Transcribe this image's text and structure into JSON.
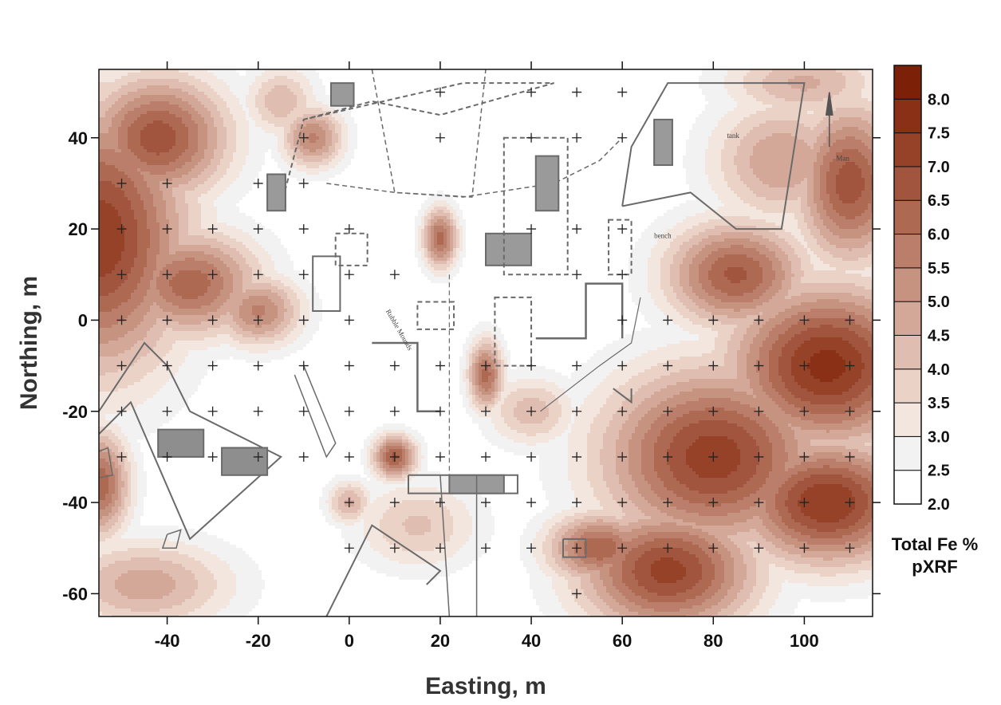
{
  "chart_data": {
    "type": "heatmap",
    "title": "",
    "xlabel": "Easting, m",
    "ylabel": "Northing, m",
    "xlim": [
      -55,
      115
    ],
    "ylim": [
      -65,
      55
    ],
    "x_ticks": [
      -40,
      -20,
      0,
      20,
      40,
      60,
      80,
      100
    ],
    "y_ticks": [
      40,
      20,
      0,
      -20,
      -40,
      -60
    ],
    "colorbar": {
      "title_lines": [
        "Total Fe %",
        "pXRF"
      ],
      "levels": [
        2.0,
        2.5,
        3.0,
        3.5,
        4.0,
        4.5,
        5.0,
        5.5,
        6.0,
        6.5,
        7.0,
        7.5,
        8.0,
        8.5
      ],
      "labels": [
        "2.0",
        "2.5",
        "3.0",
        "3.5",
        "4.0",
        "4.5",
        "5.0",
        "5.5",
        "6.0",
        "6.5",
        "7.0",
        "7.5",
        "8.0"
      ],
      "colors": [
        "#ffffff",
        "#f3f2f2",
        "#f3e6df",
        "#ead2c7",
        "#dfbdb0",
        "#d3a898",
        "#c79381",
        "#bb7e6a",
        "#ae6953",
        "#a2553e",
        "#964229",
        "#8a3016",
        "#7d2008"
      ]
    },
    "sample_points": [
      [
        20,
        50
      ],
      [
        40,
        50
      ],
      [
        50,
        50
      ],
      [
        60,
        50
      ],
      [
        -10,
        40
      ],
      [
        20,
        40
      ],
      [
        40,
        40
      ],
      [
        50,
        40
      ],
      [
        60,
        40
      ],
      [
        -50,
        30
      ],
      [
        -40,
        30
      ],
      [
        -20,
        30
      ],
      [
        -10,
        30
      ],
      [
        -50,
        20
      ],
      [
        -40,
        20
      ],
      [
        -30,
        20
      ],
      [
        -20,
        20
      ],
      [
        -10,
        20
      ],
      [
        0,
        20
      ],
      [
        40,
        20
      ],
      [
        50,
        20
      ],
      [
        60,
        20
      ],
      [
        -50,
        10
      ],
      [
        -40,
        10
      ],
      [
        -30,
        10
      ],
      [
        -20,
        10
      ],
      [
        -10,
        10
      ],
      [
        0,
        10
      ],
      [
        10,
        10
      ],
      [
        50,
        10
      ],
      [
        60,
        10
      ],
      [
        -50,
        0
      ],
      [
        -40,
        0
      ],
      [
        -30,
        0
      ],
      [
        -20,
        0
      ],
      [
        -10,
        0
      ],
      [
        0,
        0
      ],
      [
        60,
        0
      ],
      [
        70,
        0
      ],
      [
        80,
        0
      ],
      [
        90,
        0
      ],
      [
        100,
        0
      ],
      [
        110,
        0
      ],
      [
        -50,
        -10
      ],
      [
        -40,
        -10
      ],
      [
        -30,
        -10
      ],
      [
        -20,
        -10
      ],
      [
        -10,
        -10
      ],
      [
        0,
        -10
      ],
      [
        10,
        -10
      ],
      [
        20,
        -10
      ],
      [
        30,
        -10
      ],
      [
        40,
        -10
      ],
      [
        50,
        -10
      ],
      [
        60,
        -10
      ],
      [
        70,
        -10
      ],
      [
        80,
        -10
      ],
      [
        90,
        -10
      ],
      [
        100,
        -10
      ],
      [
        110,
        -10
      ],
      [
        -50,
        -20
      ],
      [
        -40,
        -20
      ],
      [
        -30,
        -20
      ],
      [
        -20,
        -20
      ],
      [
        -10,
        -20
      ],
      [
        0,
        -20
      ],
      [
        10,
        -20
      ],
      [
        20,
        -20
      ],
      [
        30,
        -20
      ],
      [
        40,
        -20
      ],
      [
        50,
        -20
      ],
      [
        60,
        -20
      ],
      [
        70,
        -20
      ],
      [
        80,
        -20
      ],
      [
        90,
        -20
      ],
      [
        100,
        -20
      ],
      [
        110,
        -20
      ],
      [
        -50,
        -30
      ],
      [
        -40,
        -30
      ],
      [
        -30,
        -30
      ],
      [
        -20,
        -30
      ],
      [
        -10,
        -30
      ],
      [
        0,
        -30
      ],
      [
        10,
        -30
      ],
      [
        20,
        -30
      ],
      [
        30,
        -30
      ],
      [
        40,
        -30
      ],
      [
        50,
        -30
      ],
      [
        60,
        -30
      ],
      [
        70,
        -30
      ],
      [
        80,
        -30
      ],
      [
        90,
        -30
      ],
      [
        100,
        -30
      ],
      [
        110,
        -30
      ],
      [
        0,
        -40
      ],
      [
        10,
        -40
      ],
      [
        20,
        -40
      ],
      [
        30,
        -40
      ],
      [
        40,
        -40
      ],
      [
        50,
        -40
      ],
      [
        60,
        -40
      ],
      [
        70,
        -40
      ],
      [
        80,
        -40
      ],
      [
        90,
        -40
      ],
      [
        100,
        -40
      ],
      [
        110,
        -40
      ],
      [
        0,
        -50
      ],
      [
        10,
        -50
      ],
      [
        20,
        -50
      ],
      [
        30,
        -50
      ],
      [
        40,
        -50
      ],
      [
        50,
        -50
      ],
      [
        60,
        -50
      ],
      [
        70,
        -50
      ],
      [
        80,
        -50
      ],
      [
        90,
        -50
      ],
      [
        100,
        -50
      ],
      [
        110,
        -50
      ],
      [
        50,
        -60
      ]
    ],
    "fe_sources": [
      [
        -55,
        18,
        7.4,
        20,
        30
      ],
      [
        -42,
        40,
        6.8,
        16,
        14
      ],
      [
        -35,
        8,
        6.3,
        16,
        12
      ],
      [
        -20,
        2,
        5.6,
        10,
        8
      ],
      [
        -8,
        40,
        5.6,
        7,
        7
      ],
      [
        20,
        18,
        6.2,
        4,
        7
      ],
      [
        30,
        -12,
        6.2,
        4,
        8
      ],
      [
        10,
        -30,
        6.6,
        5,
        5
      ],
      [
        0,
        -40,
        4.6,
        5,
        5
      ],
      [
        -55,
        -36,
        6.4,
        7,
        12
      ],
      [
        -45,
        -58,
        4.8,
        20,
        10
      ],
      [
        15,
        -45,
        4.1,
        14,
        10
      ],
      [
        105,
        -10,
        7.7,
        22,
        18
      ],
      [
        105,
        -40,
        7.5,
        20,
        14
      ],
      [
        80,
        -30,
        7.3,
        25,
        20
      ],
      [
        70,
        -55,
        7.2,
        20,
        14
      ],
      [
        110,
        30,
        6.8,
        12,
        18
      ],
      [
        95,
        35,
        5.0,
        16,
        14
      ],
      [
        85,
        10,
        6.6,
        16,
        12
      ],
      [
        55,
        -50,
        6.4,
        12,
        8
      ],
      [
        100,
        52,
        4.6,
        18,
        8
      ],
      [
        -15,
        48,
        4.4,
        8,
        8
      ],
      [
        40,
        -20,
        4.3,
        10,
        8
      ]
    ],
    "site_text": [
      "Rubble Mounds",
      "tank",
      "bench",
      "Man"
    ]
  }
}
